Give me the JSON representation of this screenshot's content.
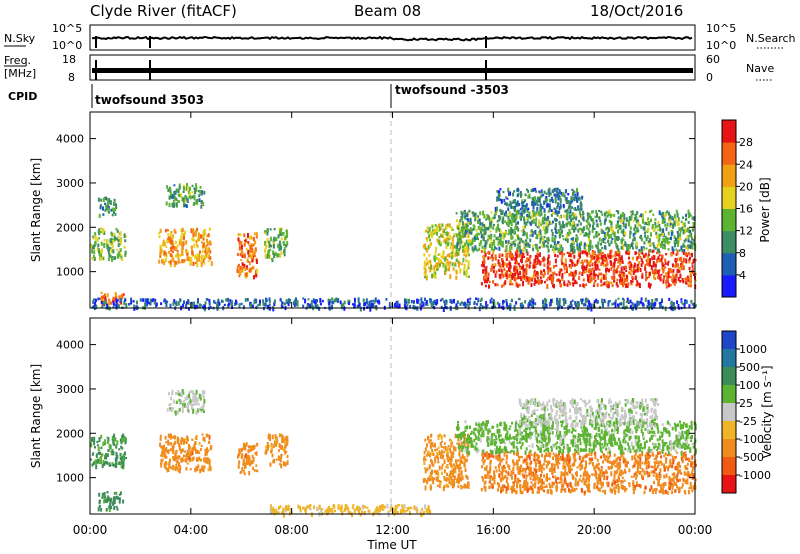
{
  "header": {
    "station": "Clyde River (fitACF)",
    "beam": "Beam 08",
    "date": "18/Oct/2016"
  },
  "noise_panel": {
    "left_label": "N.Sky",
    "left_ticks": [
      "10^5",
      "10^0"
    ],
    "right_label": "N.Search",
    "right_ticks": [
      "10^5",
      "10^0"
    ]
  },
  "freq_panel": {
    "left_label_1": "Freq.",
    "left_label_2": "[MHz]",
    "left_ticks": [
      "18",
      "8"
    ],
    "right_label": "Nave",
    "right_ticks": [
      "60",
      "0"
    ]
  },
  "cpid": {
    "label": "CPID",
    "segments": [
      {
        "text": "twofsound 3503",
        "start_hour": 0
      },
      {
        "text": "twofsound -3503",
        "start_hour": 12
      }
    ]
  },
  "time_axis": {
    "label": "Time UT",
    "ticks": [
      "00:00",
      "04:00",
      "08:00",
      "12:00",
      "16:00",
      "20:00",
      "00:00"
    ]
  },
  "range_axis": {
    "label": "Slant Range [km]",
    "ticks": [
      "1000",
      "2000",
      "3000",
      "4000"
    ]
  },
  "power_colorbar": {
    "label": "Power [dB]",
    "ticks": [
      "4",
      "8",
      "12",
      "16",
      "20",
      "24",
      "28"
    ],
    "colors": [
      "#1a1aff",
      "#1e5fb4",
      "#3c8c64",
      "#5cb432",
      "#e6d21e",
      "#f0a014",
      "#f56414",
      "#e61414"
    ]
  },
  "velocity_colorbar": {
    "label": "Velocity [m s⁻¹]",
    "ticks": [
      "1000",
      "500",
      "100",
      "25",
      "-25",
      "-100",
      "-500",
      "-1000"
    ],
    "colors": [
      "#1e46c8",
      "#2378a0",
      "#3c8c5a",
      "#5cb432",
      "#c8c8c8",
      "#f0b428",
      "#f08c1e",
      "#f05a14",
      "#e61414"
    ]
  },
  "chart_data": [
    {
      "type": "heatmap",
      "title": "Power",
      "xlabel": "Time UT",
      "ylabel": "Slant Range [km]",
      "xlim": [
        0,
        24
      ],
      "ylim": [
        180,
        4600
      ],
      "colorbar": {
        "label": "Power [dB]",
        "range": [
          0,
          32
        ]
      },
      "regions": [
        {
          "t": [
            0.0,
            1.4
          ],
          "r": [
            1300,
            2000
          ],
          "level": 14
        },
        {
          "t": [
            0.3,
            1.0
          ],
          "r": [
            2300,
            2700
          ],
          "level": 10
        },
        {
          "t": [
            0.3,
            1.3
          ],
          "r": [
            280,
            560
          ],
          "level": 26
        },
        {
          "t": [
            2.7,
            4.8
          ],
          "r": [
            1200,
            2000
          ],
          "level": 22
        },
        {
          "t": [
            3.0,
            4.5
          ],
          "r": [
            2500,
            3000
          ],
          "level": 12
        },
        {
          "t": [
            5.8,
            6.6
          ],
          "r": [
            900,
            1900
          ],
          "level": 24
        },
        {
          "t": [
            6.9,
            7.8
          ],
          "r": [
            1300,
            2000
          ],
          "level": 14
        },
        {
          "t": [
            13.2,
            15.0
          ],
          "r": [
            900,
            2100
          ],
          "level": 18
        },
        {
          "t": [
            15.5,
            24.0
          ],
          "r": [
            700,
            1500
          ],
          "level": 28
        },
        {
          "t": [
            14.5,
            24.0
          ],
          "r": [
            1500,
            2400
          ],
          "level": 12
        },
        {
          "t": [
            16.0,
            19.5
          ],
          "r": [
            2400,
            2900
          ],
          "level": 8
        },
        {
          "t": [
            0.0,
            24.0
          ],
          "r": [
            200,
            420
          ],
          "level": 6
        }
      ]
    },
    {
      "type": "heatmap",
      "title": "Velocity",
      "xlabel": "Time UT",
      "ylabel": "Slant Range [km]",
      "xlim": [
        0,
        24
      ],
      "ylim": [
        180,
        4600
      ],
      "colorbar": {
        "label": "Velocity [m s⁻¹]",
        "range": [
          -1000,
          1000
        ]
      },
      "regions": [
        {
          "t": [
            0.0,
            1.4
          ],
          "r": [
            1300,
            2000
          ],
          "velocity": 150
        },
        {
          "t": [
            0.3,
            1.3
          ],
          "r": [
            300,
            700
          ],
          "velocity": 200
        },
        {
          "t": [
            2.7,
            4.8
          ],
          "r": [
            1200,
            2000
          ],
          "velocity": -300
        },
        {
          "t": [
            3.0,
            4.5
          ],
          "r": [
            2500,
            3000
          ],
          "velocity": 10
        },
        {
          "t": [
            5.8,
            6.6
          ],
          "r": [
            1100,
            1800
          ],
          "velocity": -300
        },
        {
          "t": [
            6.9,
            7.8
          ],
          "r": [
            1300,
            2000
          ],
          "velocity": -200
        },
        {
          "t": [
            13.2,
            15.0
          ],
          "r": [
            800,
            2000
          ],
          "velocity": -200
        },
        {
          "t": [
            15.5,
            24.0
          ],
          "r": [
            700,
            1600
          ],
          "velocity": -350
        },
        {
          "t": [
            14.5,
            24.0
          ],
          "r": [
            1600,
            2300
          ],
          "velocity": 50
        },
        {
          "t": [
            17.0,
            22.5
          ],
          "r": [
            2200,
            2800
          ],
          "velocity": 10
        },
        {
          "t": [
            7.0,
            13.5
          ],
          "r": [
            200,
            420
          ],
          "velocity": -50
        }
      ]
    }
  ]
}
